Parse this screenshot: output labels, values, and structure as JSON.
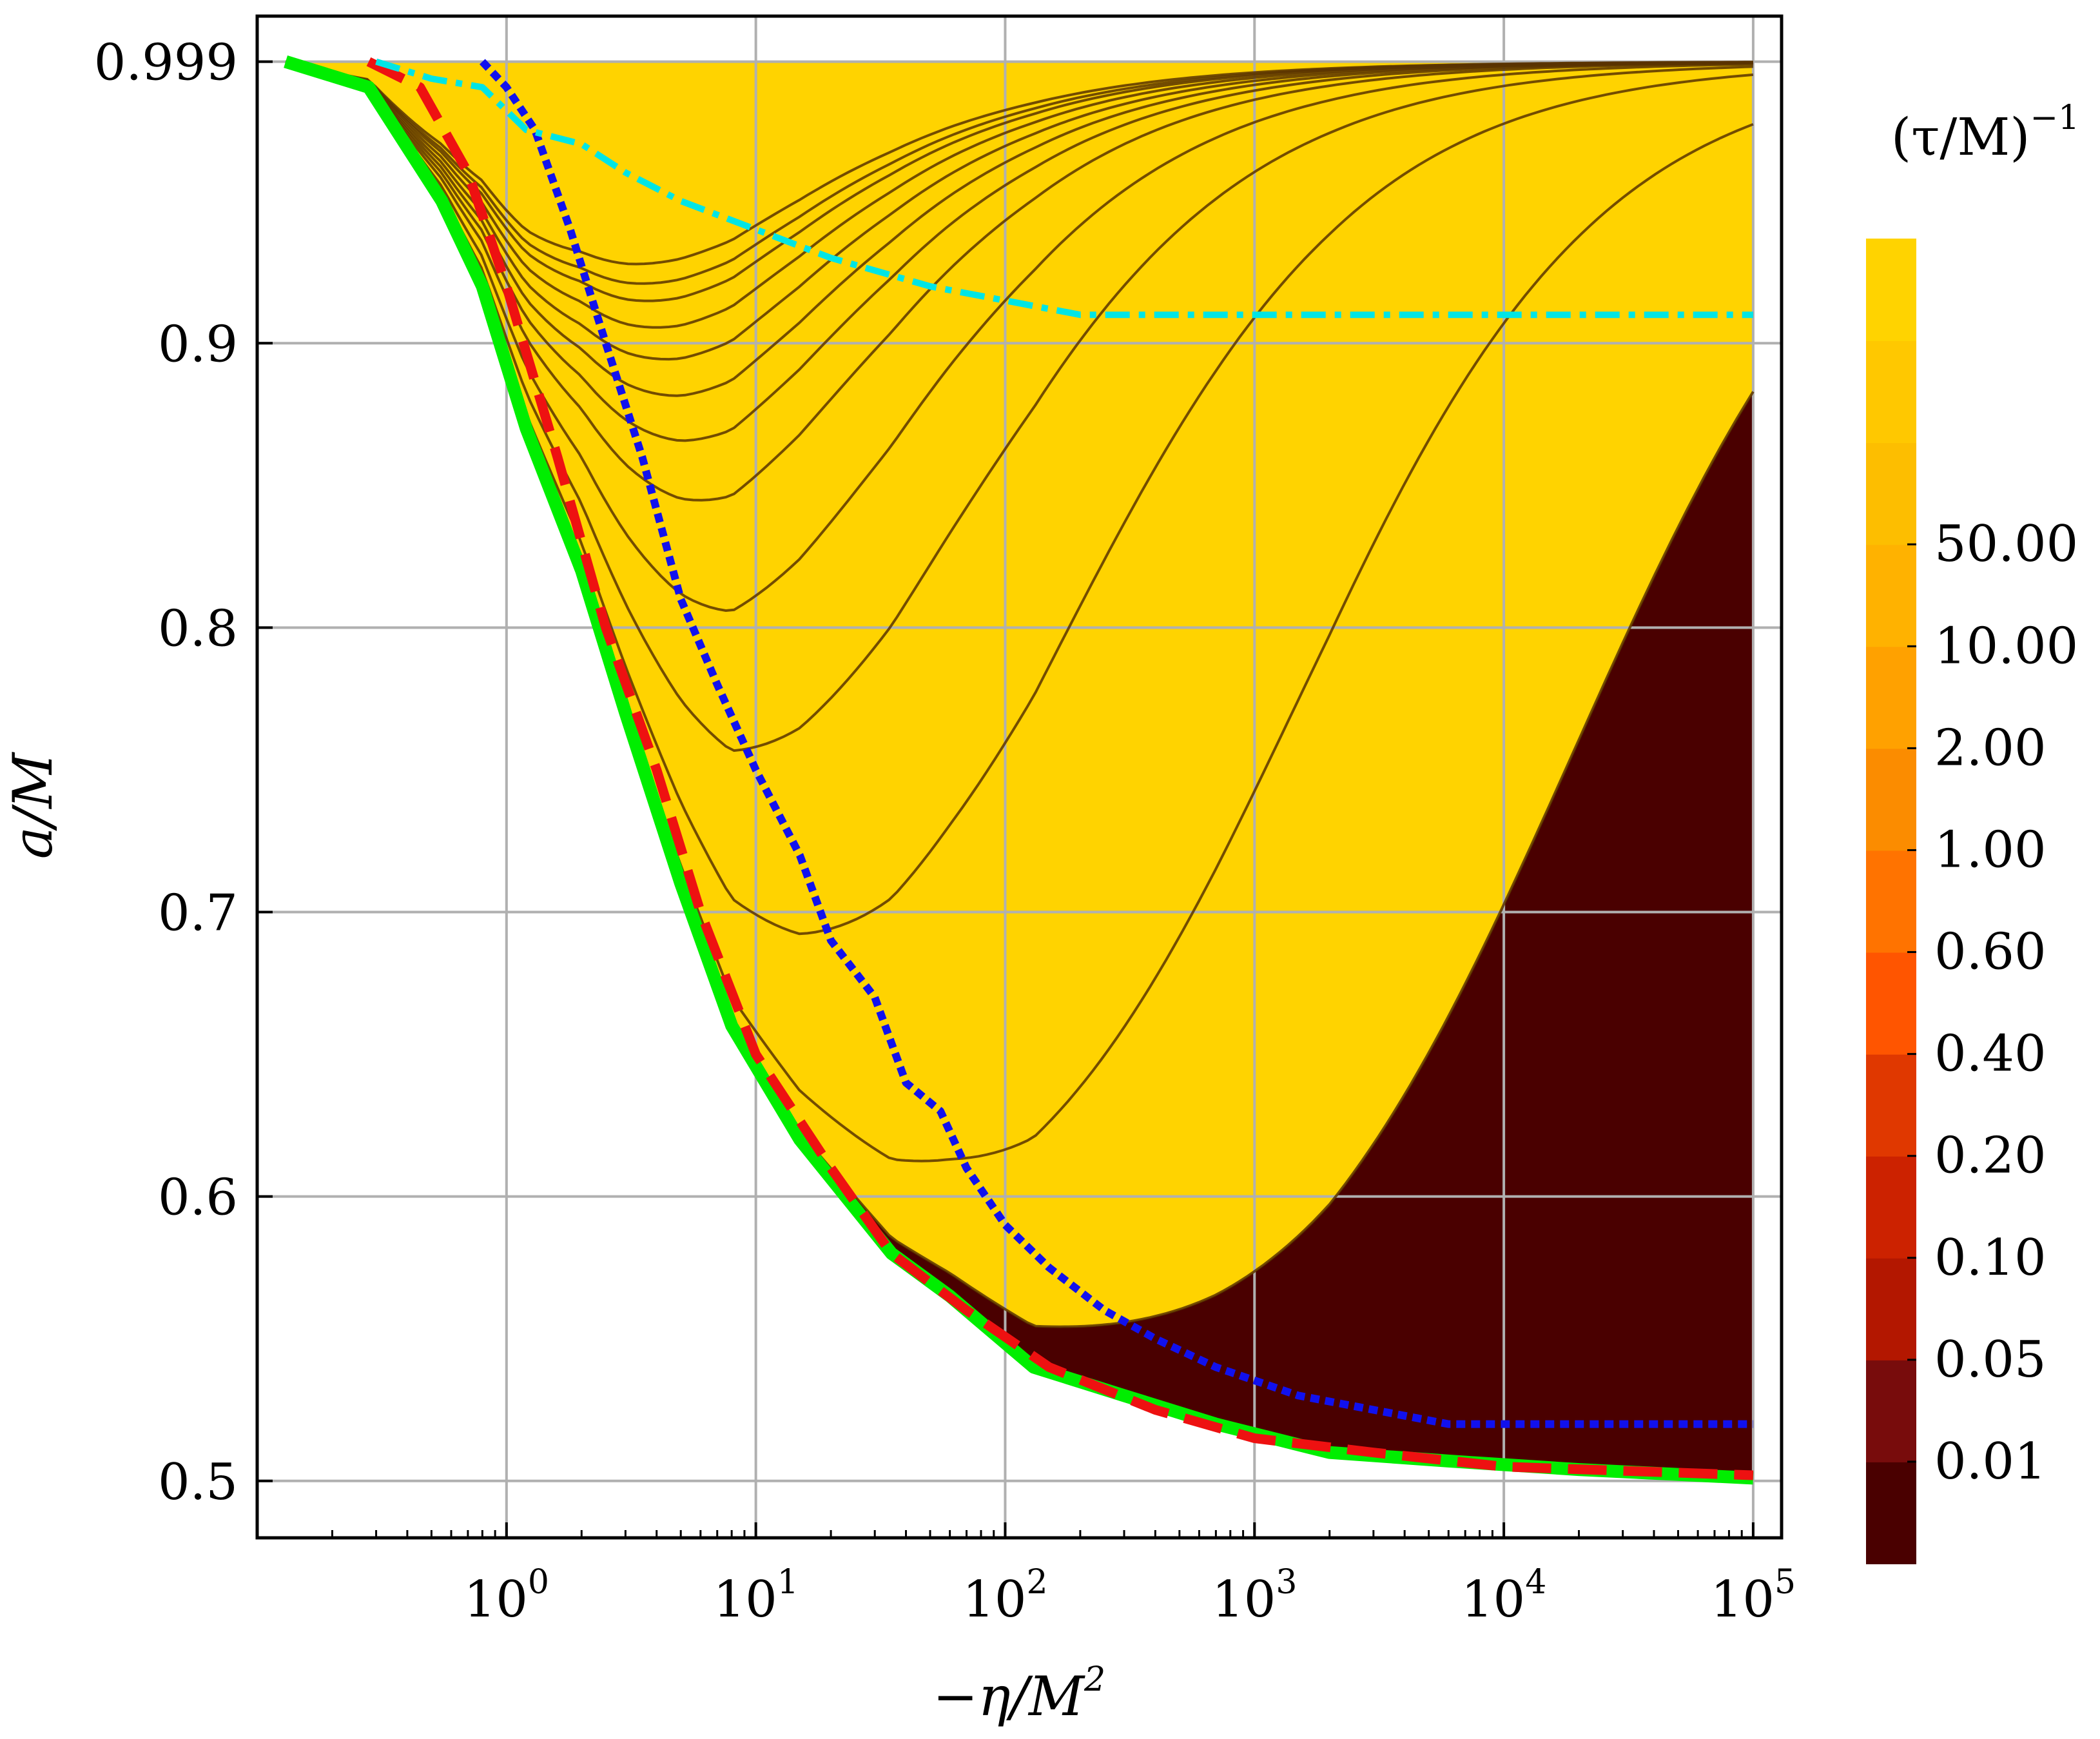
{
  "chart_data": {
    "type": "contour",
    "xlabel": "−η/M",
    "xlabel_sup": "2",
    "ylabel": "a/M",
    "xscale": "log",
    "xlim": [
      0.1,
      130000
    ],
    "ylim": [
      0.48,
      1.015
    ],
    "grid": true,
    "xticks": [
      {
        "value": 1,
        "base": "10",
        "exp": "0"
      },
      {
        "value": 10,
        "base": "10",
        "exp": "1"
      },
      {
        "value": 100,
        "base": "10",
        "exp": "2"
      },
      {
        "value": 1000,
        "base": "10",
        "exp": "3"
      },
      {
        "value": 10000,
        "base": "10",
        "exp": "4"
      },
      {
        "value": 100000,
        "base": "10",
        "exp": "5"
      }
    ],
    "yticks": [
      {
        "value": 0.5,
        "label": "0.5"
      },
      {
        "value": 0.6,
        "label": "0.6"
      },
      {
        "value": 0.7,
        "label": "0.7"
      },
      {
        "value": 0.8,
        "label": "0.8"
      },
      {
        "value": 0.9,
        "label": "0.9"
      },
      {
        "value": 0.999,
        "label": "0.999"
      }
    ],
    "colorbar": {
      "title": "(τ/M)",
      "title_sup": "−1",
      "colors": [
        "#4a0000",
        "#780c0c",
        "#b31700",
        "#cc2200",
        "#e03800",
        "#ff5500",
        "#ff7300",
        "#fb8c00",
        "#ffa100",
        "#ffb200",
        "#fdbe00",
        "#ffc800",
        "#ffd300"
      ],
      "labels": [
        "0.01",
        "0.05",
        "0.10",
        "0.20",
        "0.40",
        "0.60",
        "1.00",
        "2.00",
        "10.00",
        "50.00"
      ]
    },
    "boundary": {
      "x": [
        0.13,
        0.28,
        0.55,
        0.8,
        1.2,
        2,
        3,
        5,
        8,
        15,
        35,
        60,
        130,
        300,
        700,
        2000,
        6000,
        20000,
        100000
      ],
      "y": [
        0.999,
        0.99,
        0.95,
        0.92,
        0.87,
        0.82,
        0.77,
        0.71,
        0.66,
        0.62,
        0.58,
        0.565,
        0.54,
        0.53,
        0.52,
        0.51,
        0.507,
        0.504,
        0.501
      ]
    },
    "band_curves": [
      {
        "a": 0.95
      },
      {
        "a": 1.15
      },
      {
        "a": 1.35
      },
      {
        "a": 1.7
      },
      {
        "a": 2.2
      },
      {
        "a": 2.9
      },
      {
        "a": 4.0
      },
      {
        "a": 6.0
      },
      {
        "a": 12.0
      },
      {
        "a": 30.0
      },
      {
        "a": 120.0
      },
      {
        "a": 1200.0
      },
      {
        "a": 18000.0
      }
    ],
    "series": [
      {
        "style": "green-solid",
        "color": "#00ee00",
        "x": [
          0.13,
          0.28,
          0.55,
          0.8,
          1.2,
          2,
          3,
          5,
          8,
          15,
          35,
          60,
          130,
          300,
          700,
          2000,
          6000,
          20000,
          100000
        ],
        "y": [
          0.999,
          0.99,
          0.95,
          0.92,
          0.87,
          0.82,
          0.77,
          0.71,
          0.66,
          0.62,
          0.58,
          0.565,
          0.54,
          0.53,
          0.52,
          0.51,
          0.507,
          0.504,
          0.501
        ]
      },
      {
        "style": "red-dashed",
        "color": "#ee1111",
        "x": [
          0.28,
          0.45,
          0.7,
          1.0,
          1.6,
          2.5,
          4,
          6,
          10,
          20,
          35,
          70,
          150,
          400,
          1000,
          3000,
          10000,
          100000
        ],
        "y": [
          0.999,
          0.99,
          0.96,
          0.92,
          0.86,
          0.8,
          0.75,
          0.7,
          0.65,
          0.61,
          0.58,
          0.56,
          0.54,
          0.525,
          0.515,
          0.51,
          0.505,
          0.502
        ]
      },
      {
        "style": "blue-dotted",
        "color": "#1111ee",
        "x": [
          0.8,
          1.0,
          1.3,
          1.8,
          2.5,
          3.5,
          5,
          7,
          10,
          15,
          20,
          30,
          40,
          55,
          70,
          100,
          150,
          250,
          400,
          700,
          1500,
          3000,
          6000,
          100000
        ],
        "y": [
          0.999,
          0.99,
          0.975,
          0.94,
          0.9,
          0.86,
          0.81,
          0.78,
          0.75,
          0.72,
          0.69,
          0.67,
          0.64,
          0.63,
          0.61,
          0.59,
          0.575,
          0.56,
          0.55,
          0.54,
          0.53,
          0.525,
          0.52,
          0.52
        ]
      },
      {
        "style": "cyan-dashdot",
        "color": "#00e5e5",
        "x": [
          0.3,
          0.5,
          0.8,
          1.2,
          2,
          3,
          5,
          10,
          20,
          50,
          100,
          200,
          1000,
          10000,
          100000
        ],
        "y": [
          0.999,
          0.993,
          0.99,
          0.975,
          0.97,
          0.96,
          0.95,
          0.94,
          0.93,
          0.92,
          0.915,
          0.91,
          0.91,
          0.91,
          0.91
        ]
      }
    ]
  }
}
